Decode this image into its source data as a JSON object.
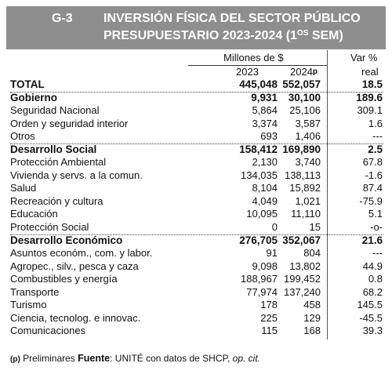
{
  "header": {
    "code": "G-3",
    "title_line1": "INVERSIÓN FÍSICA DEL SECTOR PÚBLICO",
    "title_line2_main": "PRESUPUESTARIO 2023-2024 (1",
    "title_line2_sup": "OS",
    "title_line2_end": " SEM)"
  },
  "columns": {
    "group": "Millones de $",
    "y2023": "2023",
    "y2024": "2024",
    "y2024_mark": "p",
    "var_line1": "Var %",
    "var_line2": "real"
  },
  "rows": [
    {
      "label": "TOTAL",
      "v2023": "445,048",
      "v2024": "552,057",
      "var": "18.5",
      "bold": true
    },
    {
      "label": "Gobierno",
      "v2023": "9,931",
      "v2024": "30,100",
      "var": "189.6",
      "bold": true
    },
    {
      "label": "Seguridad Nacional",
      "v2023": "5,864",
      "v2024": "25,106",
      "var": "309.1"
    },
    {
      "label": "Orden y seguridad interior",
      "v2023": "3,374",
      "v2024": "3,587",
      "var": "1.6"
    },
    {
      "label": "Otros",
      "v2023": "693",
      "v2024": "1,406",
      "var": "---"
    },
    {
      "label": "Desarrollo Social",
      "v2023": "158,412",
      "v2024": "169,890",
      "var": "2.5",
      "bold": true
    },
    {
      "label": "Protección Ambiental",
      "v2023": "2,130",
      "v2024": "3,740",
      "var": "67.8"
    },
    {
      "label": "Vivienda y servs. a la comun.",
      "v2023": "134,035",
      "v2024": "138,113",
      "var": "-1.6"
    },
    {
      "label": "Salud",
      "v2023": "8,104",
      "v2024": "15,892",
      "var": "87.4"
    },
    {
      "label": "Recreación y cultura",
      "v2023": "4,049",
      "v2024": "1,021",
      "var": "-75.9"
    },
    {
      "label": "Educación",
      "v2023": "10,095",
      "v2024": "11,110",
      "var": "5.1"
    },
    {
      "label": "Protección Social",
      "v2023": "0",
      "v2024": "15",
      "var": "-o-"
    },
    {
      "label": "Desarrollo Económico",
      "v2023": "276,705",
      "v2024": "352,067",
      "var": "21.6",
      "bold": true
    },
    {
      "label": "Asuntos económ., com. y labor.",
      "v2023": "91",
      "v2024": "804",
      "var": "---"
    },
    {
      "label": "Agropec., silv., pesca y caza",
      "v2023": "9,098",
      "v2024": "13,802",
      "var": "44.9"
    },
    {
      "label": "Combustibles y energía",
      "v2023": "188,967",
      "v2024": "199,452",
      "var": "0.8"
    },
    {
      "label": "Transporte",
      "v2023": "77,974",
      "v2024": "137,240",
      "var": "68.2"
    },
    {
      "label": "Turismo",
      "v2023": "178",
      "v2024": "458",
      "var": "145.5"
    },
    {
      "label": "Ciencia, tecnolog. e innovac.",
      "v2023": "225",
      "v2024": "129",
      "var": "-45.5"
    },
    {
      "label": "Comunicaciones",
      "v2023": "115",
      "v2024": "168",
      "var": "39.3"
    }
  ],
  "footer": {
    "mark": "(p)",
    "prelim": " Preliminares ",
    "source_label": "Fuente",
    "source_text": ": UNITÉ con datos de SHCP, ",
    "source_italic": "op. cit."
  },
  "colors": {
    "header_bg": "#8e8e8e",
    "header_text": "#ffffff"
  }
}
